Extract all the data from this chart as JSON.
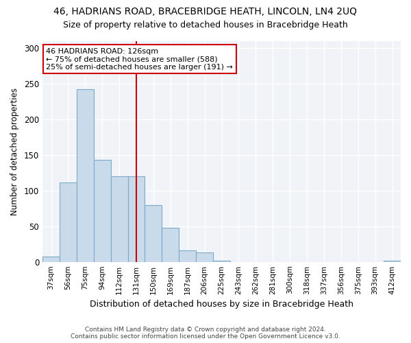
{
  "title1": "46, HADRIANS ROAD, BRACEBRIDGE HEATH, LINCOLN, LN4 2UQ",
  "title2": "Size of property relative to detached houses in Bracebridge Heath",
  "xlabel": "Distribution of detached houses by size in Bracebridge Heath",
  "ylabel": "Number of detached properties",
  "footer": "Contains HM Land Registry data © Crown copyright and database right 2024.\nContains public sector information licensed under the Open Government Licence v3.0.",
  "categories": [
    "37sqm",
    "56sqm",
    "75sqm",
    "94sqm",
    "112sqm",
    "131sqm",
    "150sqm",
    "169sqm",
    "187sqm",
    "206sqm",
    "225sqm",
    "243sqm",
    "262sqm",
    "281sqm",
    "300sqm",
    "318sqm",
    "337sqm",
    "356sqm",
    "375sqm",
    "393sqm",
    "412sqm"
  ],
  "values": [
    7,
    111,
    243,
    143,
    120,
    120,
    80,
    48,
    16,
    13,
    2,
    0,
    0,
    0,
    0,
    0,
    0,
    0,
    0,
    0,
    2
  ],
  "bar_color": "#c9daea",
  "bar_edge_color": "#7aaac8",
  "vline_x": 5.0,
  "vline_color": "#cc0000",
  "annotation_text": "46 HADRIANS ROAD: 126sqm\n← 75% of detached houses are smaller (588)\n25% of semi-detached houses are larger (191) →",
  "annotation_box_color": "#ffffff",
  "annotation_box_edge": "#cc0000",
  "ylim": [
    0,
    310
  ],
  "yticks": [
    0,
    50,
    100,
    150,
    200,
    250,
    300
  ],
  "bg_color": "#ffffff",
  "plot_bg_color": "#f0f4f8",
  "title1_fontsize": 10,
  "title2_fontsize": 9,
  "xlabel_fontsize": 9,
  "ylabel_fontsize": 8.5
}
